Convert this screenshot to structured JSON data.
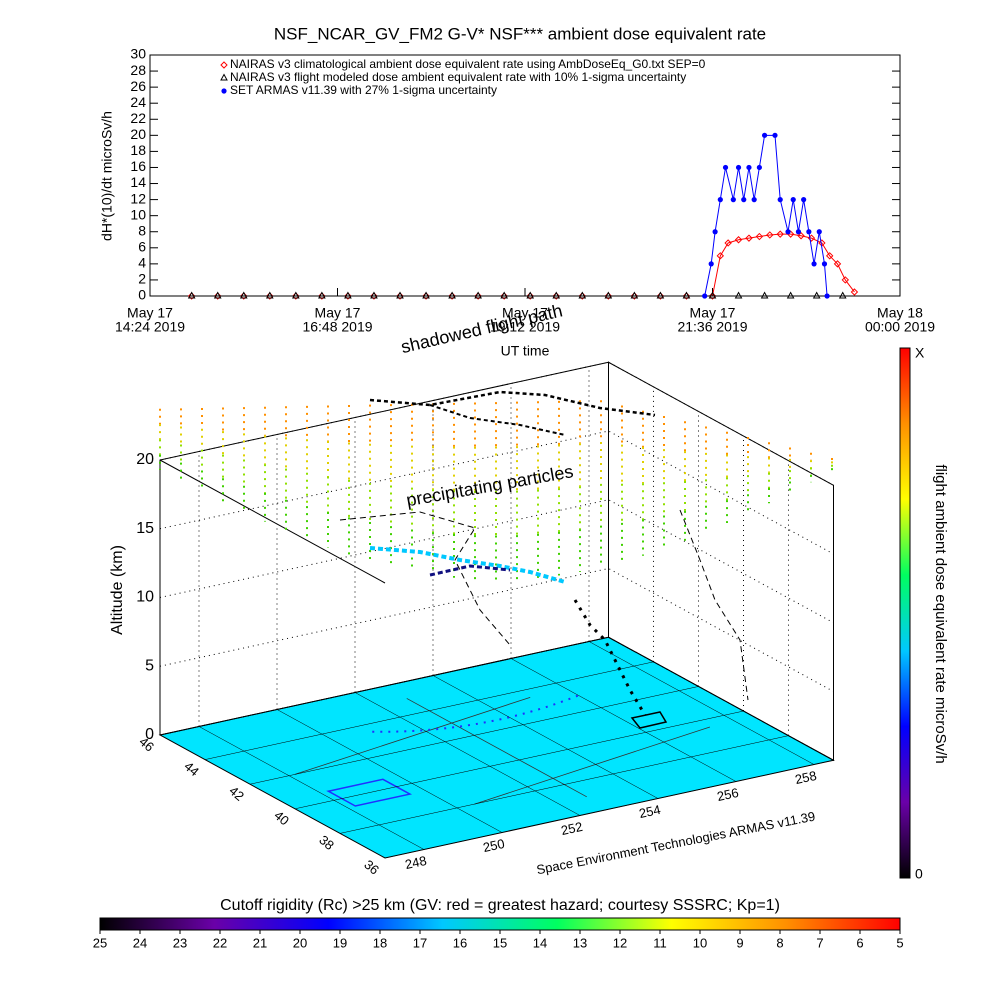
{
  "chart_data": [
    {
      "type": "line",
      "title": "NSF_NCAR_GV_FM2 G-V* NSF*** ambient dose equivalent rate",
      "xlabel": "UT time",
      "ylabel": "dH*(10)/dt microSv/h",
      "xlim": [
        "2019-05-17T14:24",
        "2019-05-18T00:00"
      ],
      "xticks": [
        {
          "value": "2019-05-17T14:24",
          "label": [
            "May 17",
            "14:24 2019"
          ]
        },
        {
          "value": "2019-05-17T16:48",
          "label": [
            "May 17",
            "16:48 2019"
          ]
        },
        {
          "value": "2019-05-17T19:12",
          "label": [
            "May 17",
            "19:12 2019"
          ]
        },
        {
          "value": "2019-05-17T21:36",
          "label": [
            "May 17",
            "21:36 2019"
          ]
        },
        {
          "value": "2019-05-18T00:00",
          "label": [
            "May 18",
            "00:00 2019"
          ]
        }
      ],
      "ylim": [
        0,
        30
      ],
      "yticks": [
        0,
        2,
        4,
        6,
        8,
        10,
        12,
        14,
        16,
        18,
        20,
        22,
        24,
        26,
        28,
        30
      ],
      "legend": "upper left",
      "series": [
        {
          "name": "NAIRAS v3 climatological ambient dose equivalent rate using AmbDoseEq_G0.txt SEP=0",
          "color": "#ff0000",
          "marker": "diamond",
          "x": [
            "2019-05-17T14:56",
            "2019-05-17T15:16",
            "2019-05-17T15:36",
            "2019-05-17T15:56",
            "2019-05-17T16:16",
            "2019-05-17T16:36",
            "2019-05-17T16:56",
            "2019-05-17T17:16",
            "2019-05-17T17:36",
            "2019-05-17T17:56",
            "2019-05-17T18:16",
            "2019-05-17T18:36",
            "2019-05-17T18:56",
            "2019-05-17T19:16",
            "2019-05-17T19:36",
            "2019-05-17T19:56",
            "2019-05-17T20:16",
            "2019-05-17T20:36",
            "2019-05-17T20:56",
            "2019-05-17T21:16",
            "2019-05-17T21:36",
            "2019-05-17T21:42",
            "2019-05-17T21:48",
            "2019-05-17T21:56",
            "2019-05-17T22:04",
            "2019-05-17T22:12",
            "2019-05-17T22:20",
            "2019-05-17T22:28",
            "2019-05-17T22:36",
            "2019-05-17T22:44",
            "2019-05-17T22:52",
            "2019-05-17T23:00",
            "2019-05-17T23:06",
            "2019-05-17T23:12",
            "2019-05-17T23:18",
            "2019-05-17T23:25"
          ],
          "values": [
            0,
            0,
            0,
            0,
            0,
            0,
            0,
            0,
            0,
            0,
            0,
            0,
            0,
            0,
            0,
            0,
            0,
            0,
            0,
            0,
            0,
            5,
            6.6,
            7,
            7.2,
            7.4,
            7.6,
            7.7,
            7.7,
            7.5,
            7.2,
            6.6,
            5,
            4,
            2,
            0.5
          ]
        },
        {
          "name": "NAIRAS v3 flight modeled dose ambient equivalent rate with 10% 1-sigma uncertainty",
          "color": "#000000",
          "marker": "triangle",
          "x": [
            "2019-05-17T14:56",
            "2019-05-17T15:16",
            "2019-05-17T15:36",
            "2019-05-17T15:56",
            "2019-05-17T16:16",
            "2019-05-17T16:36",
            "2019-05-17T16:56",
            "2019-05-17T17:16",
            "2019-05-17T17:36",
            "2019-05-17T17:56",
            "2019-05-17T18:16",
            "2019-05-17T18:36",
            "2019-05-17T18:56",
            "2019-05-17T19:16",
            "2019-05-17T19:36",
            "2019-05-17T19:56",
            "2019-05-17T20:16",
            "2019-05-17T20:36",
            "2019-05-17T20:56",
            "2019-05-17T21:16",
            "2019-05-17T21:36",
            "2019-05-17T21:56",
            "2019-05-17T22:16",
            "2019-05-17T22:36",
            "2019-05-17T22:56",
            "2019-05-17T23:16"
          ],
          "values": [
            0,
            0,
            0,
            0,
            0,
            0,
            0,
            0,
            0,
            0,
            0,
            0,
            0,
            0,
            0,
            0,
            0,
            0,
            0,
            0,
            0,
            0,
            0,
            0,
            0,
            0
          ]
        },
        {
          "name": "SET ARMAS v11.39 with 27% 1-sigma uncertainty",
          "color": "#0000ff",
          "marker": "circle",
          "x": [
            "2019-05-17T21:30",
            "2019-05-17T21:35",
            "2019-05-17T21:38",
            "2019-05-17T21:42",
            "2019-05-17T21:46",
            "2019-05-17T21:52",
            "2019-05-17T21:56",
            "2019-05-17T22:00",
            "2019-05-17T22:04",
            "2019-05-17T22:08",
            "2019-05-17T22:12",
            "2019-05-17T22:16",
            "2019-05-17T22:24",
            "2019-05-17T22:28",
            "2019-05-17T22:34",
            "2019-05-17T22:38",
            "2019-05-17T22:42",
            "2019-05-17T22:46",
            "2019-05-17T22:50",
            "2019-05-17T22:54",
            "2019-05-17T22:58",
            "2019-05-17T23:02",
            "2019-05-17T23:04"
          ],
          "values": [
            0,
            4,
            8,
            12,
            16,
            12,
            16,
            12,
            16,
            12,
            16,
            20,
            20,
            12,
            8,
            12,
            8,
            12,
            8,
            4,
            8,
            4,
            0
          ]
        }
      ]
    },
    {
      "type": "scatter3d",
      "zlabel": "Altitude (km)",
      "xlim": [
        247,
        258.5
      ],
      "xticks": [
        248,
        250,
        252,
        254,
        256,
        258
      ],
      "ylim": [
        36,
        46
      ],
      "yticks": [
        36,
        38,
        40,
        42,
        44,
        46
      ],
      "zlim": [
        0,
        20
      ],
      "zticks": [
        0,
        5,
        10,
        15,
        20
      ],
      "floor_color": "#00e5ff",
      "annotations": [
        "shadowed flight path",
        "precipitating particles"
      ],
      "credit": "Space Environment Technologies ARMAS v11.39"
    },
    {
      "type": "colorbar",
      "orientation": "vertical",
      "label": "flight ambient dose equivalent rate microSv/h",
      "min_label": "0",
      "max_label": "X",
      "colors": [
        "#000000",
        "#6a00a8",
        "#0000ff",
        "#00c8ff",
        "#00ff60",
        "#ffff00",
        "#ff9000",
        "#ff0000"
      ]
    },
    {
      "type": "colorbar",
      "orientation": "horizontal",
      "title": "Cutoff rigidity (Rc) >25 km (GV: red = greatest hazard; courtesy SSSRC; Kp=1)",
      "xlim": [
        25,
        5
      ],
      "xticks": [
        25,
        24,
        23,
        22,
        21,
        20,
        19,
        18,
        17,
        16,
        15,
        14,
        13,
        12,
        11,
        10,
        9,
        8,
        7,
        6,
        5
      ],
      "colors": [
        "#000000",
        "#6a00a8",
        "#0000ff",
        "#00c8ff",
        "#00ff60",
        "#ffff00",
        "#ff9000",
        "#ff0000"
      ]
    }
  ]
}
